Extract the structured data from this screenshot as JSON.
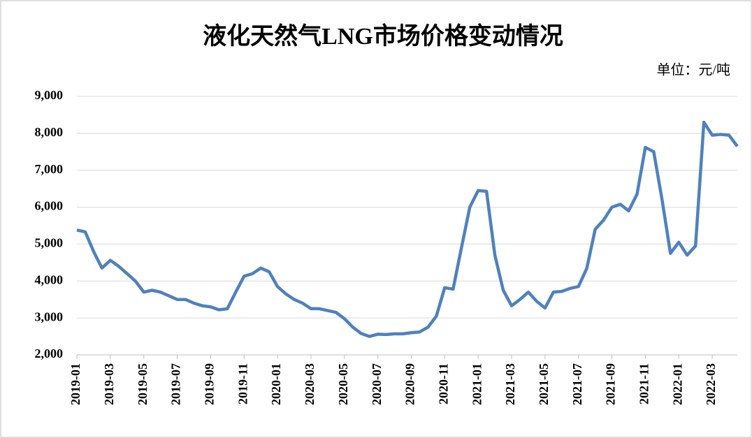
{
  "chart_data": {
    "type": "line",
    "title": "液化天然气LNG市场价格变动情况",
    "unit_label": "单位：元/吨",
    "categories": [
      "2019-01",
      null,
      null,
      null,
      "2019-03",
      null,
      null,
      null,
      "2019-05",
      null,
      null,
      null,
      "2019-07",
      null,
      null,
      null,
      "2019-09",
      null,
      null,
      null,
      "2019-11",
      null,
      null,
      null,
      "2020-01",
      null,
      null,
      null,
      "2020-03",
      null,
      null,
      null,
      "2020-05",
      null,
      null,
      null,
      "2020-07",
      null,
      null,
      null,
      "2020-09",
      null,
      null,
      null,
      "2020-11",
      null,
      null,
      null,
      "2021-01",
      null,
      null,
      null,
      "2021-03",
      null,
      null,
      null,
      "2021-05",
      null,
      null,
      null,
      "2021-07",
      null,
      null,
      null,
      "2021-09",
      null,
      null,
      null,
      "2021-11",
      null,
      null,
      null,
      "2022-01",
      null,
      null,
      null,
      "2022-03",
      null,
      null,
      null
    ],
    "series": [
      {
        "color": "#4f81bd",
        "values": [
          5380,
          5330,
          4800,
          4350,
          4560,
          4400,
          4200,
          4000,
          3700,
          3750,
          3700,
          3600,
          3500,
          3500,
          3400,
          3330,
          3300,
          3220,
          3250,
          3700,
          4130,
          4200,
          4350,
          4250,
          3850,
          3650,
          3500,
          3400,
          3250,
          3250,
          3200,
          3150,
          2980,
          2750,
          2580,
          2500,
          2560,
          2550,
          2570,
          2570,
          2600,
          2620,
          2750,
          3050,
          3820,
          3780,
          4900,
          6000,
          6450,
          6430,
          4700,
          3750,
          3330,
          3500,
          3700,
          3450,
          3270,
          3700,
          3720,
          3800,
          3850,
          4350,
          5400,
          5650,
          6000,
          6080,
          5900,
          6350,
          7620,
          7500,
          6200,
          4750,
          5050,
          4700,
          4950,
          8300,
          7950,
          7970,
          7950,
          7650
        ]
      }
    ],
    "ylim": [
      2000,
      9000
    ],
    "yticks": [
      {
        "value": 2000,
        "label": "2,000"
      },
      {
        "value": 3000,
        "label": "3,000"
      },
      {
        "value": 4000,
        "label": "4,000"
      },
      {
        "value": 5000,
        "label": "5,000"
      },
      {
        "value": 6000,
        "label": "6,000"
      },
      {
        "value": 7000,
        "label": "7,000"
      },
      {
        "value": 8000,
        "label": "8,000"
      },
      {
        "value": 9000,
        "label": "9,000"
      }
    ],
    "grid": true
  }
}
